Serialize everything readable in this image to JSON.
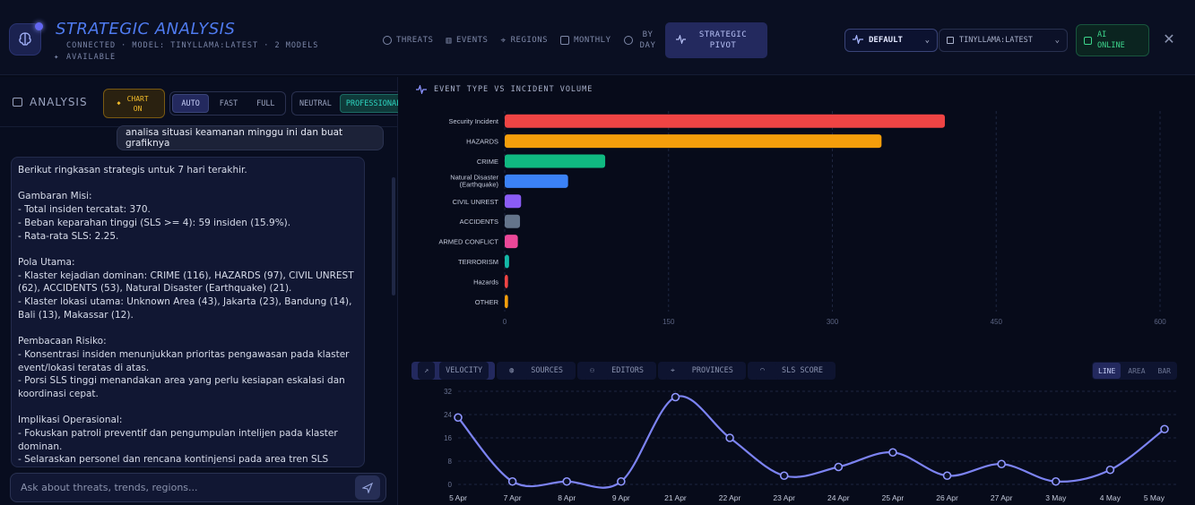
{
  "header": {
    "title": "STRATEGIC ANALYSIS",
    "status": "CONNECTED · MODEL: TINYLLAMA:LATEST · 2 MODELS AVAILABLE",
    "nav": [
      {
        "label": "THREATS",
        "icon": "clock-icon"
      },
      {
        "label": "EVENTS",
        "icon": "bar-chart-icon"
      },
      {
        "label": "REGIONS",
        "icon": "map-pin-icon"
      },
      {
        "label": "MONTHLY",
        "icon": "calendar-icon"
      },
      {
        "label": "BY DAY",
        "icon": "clock-icon"
      },
      {
        "label": "STRATEGIC PIVOT",
        "icon": "pulse-icon",
        "active": true
      }
    ],
    "profile_select": "DEFAULT",
    "model_select": "TINYLLAMA:LATEST",
    "ai_status": "AI ONLINE",
    "accent": "#6366f1"
  },
  "analysis": {
    "label": "ANALYSIS",
    "chart_toggle": "CHART ON",
    "modes": [
      "AUTO",
      "FAST",
      "FULL"
    ],
    "active_mode": "AUTO",
    "tones": [
      "NEUTRAL",
      "PROFESSIONAL"
    ],
    "active_tone": "PROFESSIONAL",
    "user_message": "analisa situasi keamanan minggu ini dan buat grafiknya",
    "ai_message": "Berikut ringkasan strategis untuk 7 hari terakhir.\n\nGambaran Misi:\n- Total insiden tercatat: 370.\n- Beban keparahan tinggi (SLS >= 4): 59 insiden (15.9%).\n- Rata-rata SLS: 2.25.\n\nPola Utama:\n- Klaster kejadian dominan: CRIME (116), HAZARDS (97), CIVIL UNREST (62), ACCIDENTS (53), Natural Disaster (Earthquake) (21).\n- Klaster lokasi utama: Unknown Area (43), Jakarta (23), Bandung (14), Bali (13), Makassar (12).\n\nPembacaan Risiko:\n- Konsentrasi insiden menunjukkan prioritas pengawasan pada klaster event/lokasi teratas di atas.\n- Porsi SLS tinggi menandakan area yang perlu kesiapan eskalasi dan koordinasi cepat.\n\nImplikasi Operasional:\n- Fokuskan patroli preventif dan pengumpulan intelijen pada klaster dominan.\n- Selaraskan personel dan rencana kontinjensi pada area tren SLS tinggi",
    "input_placeholder": "Ask about threats, trends, regions..."
  },
  "bar_panel": {
    "title": "EVENT TYPE VS INCIDENT VOLUME"
  },
  "line_panel": {
    "tabs": [
      "VELOCITY",
      "SOURCES",
      "EDITORS",
      "PROVINCES",
      "SLS SCORE"
    ],
    "active_tab": "VELOCITY",
    "chart_types": [
      "LINE",
      "AREA",
      "BAR"
    ],
    "active_type": "LINE"
  },
  "chart_data": [
    {
      "type": "bar",
      "orientation": "horizontal",
      "categories": [
        "Security Incident",
        "HAZARDS",
        "CRIME",
        "Natural Disaster (Earthquake)",
        "CIVIL UNREST",
        "ACCIDENTS",
        "ARMED CONFLICT",
        "TERRORISM",
        "Hazards",
        "OTHER"
      ],
      "values": [
        403,
        345,
        92,
        58,
        15,
        14,
        12,
        4,
        3,
        3
      ],
      "colors": [
        "#ef4444",
        "#f59e0b",
        "#10b981",
        "#3b82f6",
        "#8b5cf6",
        "#64748b",
        "#ec4899",
        "#14b8a6",
        "#ef4444",
        "#f59e0b"
      ],
      "xticks": [
        0,
        150,
        300,
        450,
        600
      ],
      "xlim": [
        0,
        600
      ],
      "grid": true
    },
    {
      "type": "line",
      "x": [
        "5 Apr",
        "7 Apr",
        "8 Apr",
        "9 Apr",
        "21 Apr",
        "22 Apr",
        "23 Apr",
        "24 Apr",
        "25 Apr",
        "26 Apr",
        "27 Apr",
        "3 May",
        "4 May",
        "5 May"
      ],
      "values": [
        23,
        1,
        1,
        1,
        30,
        16,
        3,
        6,
        11,
        3,
        7,
        1,
        5,
        19
      ],
      "yticks": [
        0,
        8,
        16,
        24,
        32
      ],
      "ylim": [
        0,
        32
      ],
      "color": "#7c83f2",
      "grid": true
    }
  ]
}
